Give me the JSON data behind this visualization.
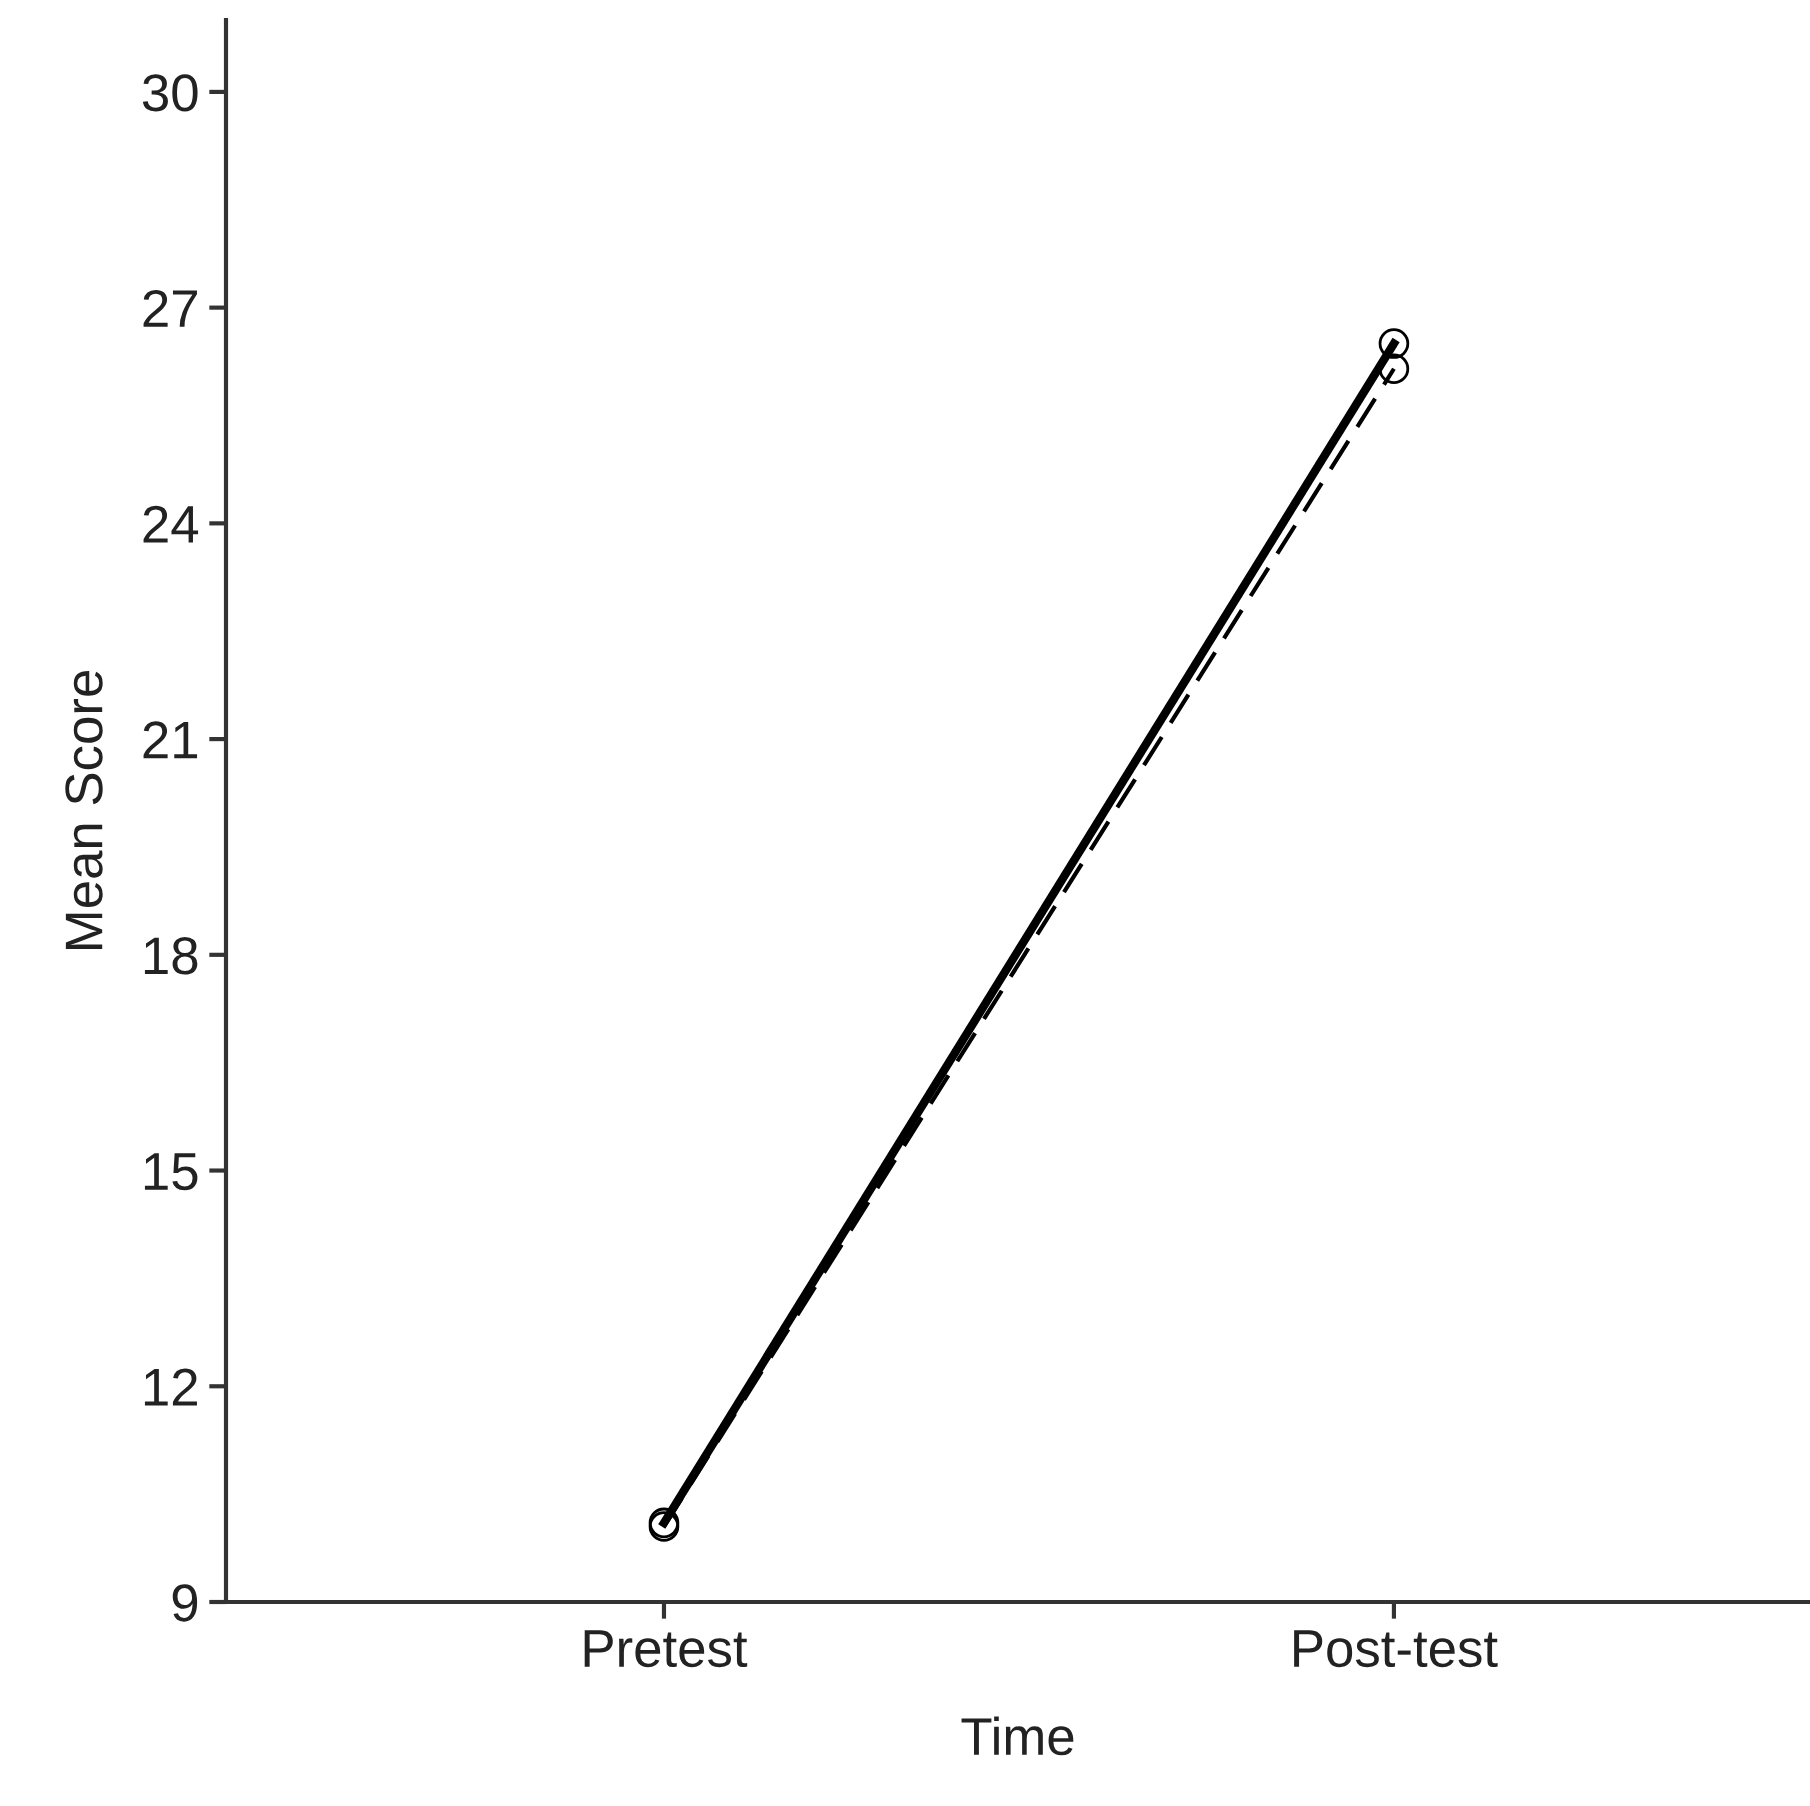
{
  "chart_data": {
    "type": "line",
    "xlabel": "Time",
    "ylabel": "Mean Score",
    "categories": [
      "Pretest",
      "Post-test"
    ],
    "series": [
      {
        "color": "#000000",
        "values": [
          10.1,
          26.5
        ],
        "line_style": "solid"
      },
      {
        "color": "#000000",
        "values": [
          10.05,
          26.15
        ],
        "line_style": "dashed"
      }
    ],
    "ylim": [
      9,
      31
    ],
    "yticks": [
      9,
      12,
      15,
      18,
      21,
      24,
      27,
      30
    ],
    "marker": "circle",
    "grid": false,
    "legend": false
  }
}
